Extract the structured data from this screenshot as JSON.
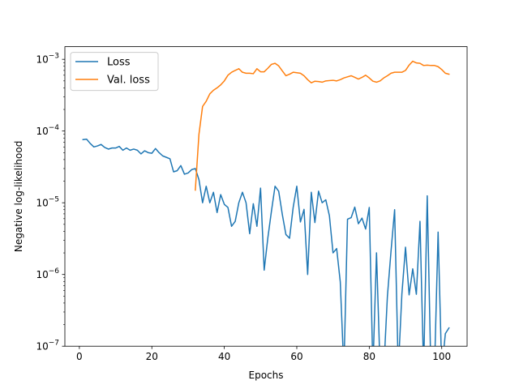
{
  "chart_data": {
    "type": "line",
    "title": "",
    "xlabel": "Epochs",
    "ylabel": "Negative log-likelihood",
    "xlim": [
      -4,
      107
    ],
    "ylim": [
      1e-07,
      0.0015
    ],
    "yscale": "log",
    "grid": false,
    "legend_placement": "top-left",
    "x_ticks": [
      {
        "value": 0,
        "label": "0"
      },
      {
        "value": 20,
        "label": "20"
      },
      {
        "value": 40,
        "label": "40"
      },
      {
        "value": 60,
        "label": "60"
      },
      {
        "value": 80,
        "label": "80"
      },
      {
        "value": 100,
        "label": "100"
      }
    ],
    "y_ticks": [
      {
        "value": 1e-07,
        "base": "10",
        "exp": "−7"
      },
      {
        "value": 1e-06,
        "base": "10",
        "exp": "−6"
      },
      {
        "value": 1e-05,
        "base": "10",
        "exp": "−5"
      },
      {
        "value": 0.0001,
        "base": "10",
        "exp": "−4"
      },
      {
        "value": 0.001,
        "base": "10",
        "exp": "−3"
      }
    ],
    "series": [
      {
        "name": "Loss",
        "color": "#1f77b4",
        "x": [
          1,
          2,
          3,
          4,
          5,
          6,
          7,
          8,
          9,
          10,
          11,
          12,
          13,
          14,
          15,
          16,
          17,
          18,
          19,
          20,
          21,
          22,
          23,
          24,
          25,
          26,
          27,
          28,
          29,
          30,
          31,
          32,
          33,
          34,
          35,
          36,
          37,
          38,
          39,
          40,
          41,
          42,
          43,
          44,
          45,
          46,
          47,
          48,
          49,
          50,
          51,
          52,
          53,
          54,
          55,
          56,
          57,
          58,
          59,
          60,
          61,
          62,
          63,
          64,
          65,
          66,
          67,
          68,
          69,
          70,
          71,
          72,
          73,
          74,
          75,
          76,
          77,
          78,
          79,
          80,
          81,
          82,
          83,
          84,
          85,
          86,
          87,
          88,
          89,
          90,
          91,
          92,
          93,
          94,
          95,
          96,
          97,
          98,
          99,
          100,
          101,
          102
        ],
        "values": [
          7.6e-05,
          7.7e-05,
          6.7e-05,
          6e-05,
          6.2e-05,
          6.5e-05,
          5.9e-05,
          5.6e-05,
          5.8e-05,
          5.8e-05,
          6.1e-05,
          5.4e-05,
          5.8e-05,
          5.4e-05,
          5.6e-05,
          5.4e-05,
          4.8e-05,
          5.3e-05,
          5e-05,
          4.9e-05,
          5.7e-05,
          5e-05,
          4.5e-05,
          4.3e-05,
          4.1e-05,
          2.7e-05,
          2.8e-05,
          3.3e-05,
          2.5e-05,
          2.6e-05,
          2.9e-05,
          3e-05,
          2.1e-05,
          1e-05,
          1.7e-05,
          1e-05,
          1.4e-05,
          7.3e-06,
          1.3e-05,
          9.5e-06,
          8.6e-06,
          4.7e-06,
          5.5e-06,
          1e-05,
          1.4e-05,
          1e-05,
          3.7e-06,
          9.7e-06,
          4.7e-06,
          1.6e-05,
          1.15e-06,
          3.2e-06,
          7.6e-06,
          1.7e-05,
          1.45e-05,
          6.9e-06,
          3.6e-06,
          3.2e-06,
          8.6e-06,
          1.7e-05,
          5.4e-06,
          8.1e-06,
          1e-06,
          1.4e-05,
          5.3e-06,
          1.45e-05,
          1e-05,
          1.1e-05,
          6.6e-06,
          2e-06,
          2.3e-06,
          7.9e-07,
          null,
          5.9e-06,
          6.2e-06,
          8.7e-06,
          5.1e-06,
          6.1e-06,
          4.3e-06,
          8.6e-06,
          null,
          2e-06,
          null,
          null,
          4.9e-07,
          2.1e-06,
          8e-06,
          null,
          5.3e-07,
          2.4e-06,
          5.2e-07,
          1.2e-06,
          5.3e-07,
          5.5e-06,
          null,
          1.25e-05,
          null,
          null,
          3.9e-06,
          null,
          1.5e-07,
          1.8e-07
        ]
      },
      {
        "name": "Val. loss",
        "color": "#ff7f0e",
        "x": [
          32,
          33,
          34,
          35,
          36,
          37,
          38,
          39,
          40,
          41,
          42,
          43,
          44,
          45,
          46,
          47,
          48,
          49,
          50,
          51,
          52,
          53,
          54,
          55,
          56,
          57,
          58,
          59,
          60,
          61,
          62,
          63,
          64,
          65,
          66,
          67,
          68,
          69,
          70,
          71,
          72,
          73,
          74,
          75,
          76,
          77,
          78,
          79,
          80,
          81,
          82,
          83,
          84,
          85,
          86,
          87,
          88,
          89,
          90,
          91,
          92,
          93,
          94,
          95,
          96,
          97,
          98,
          99,
          100,
          101,
          102
        ],
        "values": [
          1.5e-05,
          9e-05,
          0.00022,
          0.00026,
          0.00033,
          0.00037,
          0.0004,
          0.00044,
          0.0005,
          0.0006,
          0.00066,
          0.0007,
          0.00074,
          0.00066,
          0.00064,
          0.00064,
          0.00063,
          0.00074,
          0.00067,
          0.00067,
          0.00075,
          0.00085,
          0.00088,
          0.00081,
          0.00069,
          0.00059,
          0.00062,
          0.00066,
          0.00065,
          0.00064,
          0.00059,
          0.00052,
          0.00047,
          0.000495,
          0.00049,
          0.00048,
          0.0005,
          0.000505,
          0.00051,
          0.0005,
          0.00052,
          0.00055,
          0.00057,
          0.00059,
          0.00056,
          0.00053,
          0.00056,
          0.0006,
          0.00055,
          0.000495,
          0.00048,
          0.0005,
          0.00055,
          0.00059,
          0.00064,
          0.00066,
          0.00066,
          0.00066,
          0.0007,
          0.00083,
          0.00094,
          0.00089,
          0.00088,
          0.00082,
          0.00083,
          0.00082,
          0.00082,
          0.00079,
          0.00072,
          0.00064,
          0.00062
        ]
      }
    ]
  }
}
